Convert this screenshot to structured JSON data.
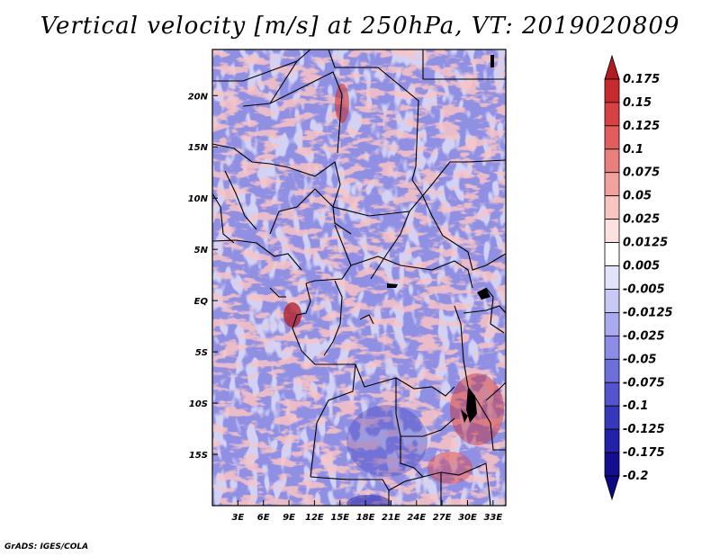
{
  "title": "Vertical velocity [m/s] at 250hPa, VT: 2019020809",
  "credit": "GrADS: IGES/COLA",
  "map": {
    "y_labels": [
      "20N",
      "15N",
      "10N",
      "5N",
      "EQ",
      "5S",
      "10S",
      "15S"
    ],
    "x_labels": [
      "3E",
      "6E",
      "9E",
      "12E",
      "15E",
      "18E",
      "21E",
      "24E",
      "27E",
      "30E",
      "33E"
    ],
    "lon_range": [
      0,
      34.5
    ],
    "lat_range": [
      -20,
      24.5
    ],
    "field": "vertical velocity",
    "pressure_level": "250hPa"
  },
  "colorbar": {
    "labels": [
      "0.175",
      "0.15",
      "0.125",
      "0.1",
      "0.075",
      "0.05",
      "0.025",
      "0.0125",
      "0.005",
      "-0.005",
      "-0.0125",
      "-0.025",
      "-0.05",
      "-0.075",
      "-0.1",
      "-0.125",
      "-0.175",
      "-0.2"
    ],
    "colors": [
      "#b01c20",
      "#c72a2c",
      "#d74344",
      "#e25e5c",
      "#eb7f7b",
      "#f2a29d",
      "#f8c5c0",
      "#fce2de",
      "#ffffff",
      "#e2e2fb",
      "#c8c8f5",
      "#aaaaee",
      "#8c8ce6",
      "#6f6fdc",
      "#5454cf",
      "#3838bd",
      "#2222a8",
      "#160e90",
      "#0c0a7c"
    ]
  }
}
